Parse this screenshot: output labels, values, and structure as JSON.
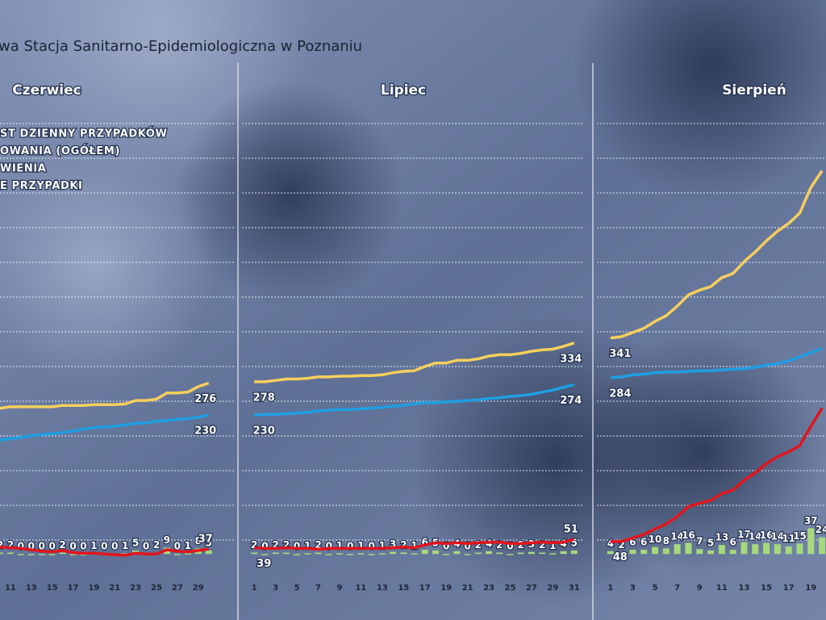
{
  "header": {
    "title": "wa Stacja Sanitarno-Epidemiologiczna w Poznaniu"
  },
  "chart_data": [
    {
      "type": "line",
      "title": "Czerwiec",
      "x": [
        10,
        11,
        12,
        13,
        14,
        15,
        16,
        17,
        18,
        19,
        20,
        21,
        22,
        23,
        24,
        25,
        26,
        27,
        28,
        29,
        30
      ],
      "xlim": [
        10,
        32.5
      ],
      "xticks": [
        11,
        13,
        15,
        17,
        19,
        21,
        23,
        25,
        27,
        29
      ],
      "ylim": [
        0,
        700
      ],
      "yticks": [
        50,
        100,
        150,
        200,
        250,
        300,
        350,
        400,
        450,
        500,
        550,
        600,
        650
      ],
      "y2lim": [
        -30,
        670
      ],
      "grid": true,
      "series": [
        {
          "name": "ST DZIENNY PRZYPADKÓW",
          "type": "bar",
          "axis": "y2",
          "color": "#a6d97c",
          "values": [
            2,
            2,
            0,
            0,
            0,
            0,
            2,
            0,
            0,
            1,
            0,
            0,
            1,
            5,
            0,
            2,
            9,
            0,
            1,
            8,
            5
          ]
        },
        {
          "name": "OWANIA (OGÓŁEM)",
          "type": "line",
          "color": "#f7cf5c",
          "values": [
            240,
            242,
            242,
            242,
            242,
            242,
            244,
            244,
            244,
            245,
            245,
            245,
            246,
            251,
            251,
            253,
            262,
            262,
            263,
            271,
            276
          ]
        },
        {
          "name": "WIENIA",
          "type": "line",
          "color": "#1e9fe3",
          "values": [
            194,
            196,
            198,
            200,
            202,
            203,
            205,
            207,
            210,
            212,
            213,
            214,
            216,
            218,
            219,
            221,
            222,
            224,
            225,
            227,
            230
          ]
        },
        {
          "name": "E PRZYPADKI",
          "type": "line",
          "color": "#e3141c",
          "values": [
            40,
            39,
            38,
            36,
            34,
            33,
            35,
            32,
            31,
            31,
            30,
            29,
            28,
            31,
            30,
            30,
            36,
            34,
            33,
            35,
            37
          ]
        }
      ]
    },
    {
      "type": "line",
      "title": "Lipiec",
      "x": [
        1,
        2,
        3,
        4,
        5,
        6,
        7,
        8,
        9,
        10,
        11,
        12,
        13,
        14,
        15,
        16,
        17,
        18,
        19,
        20,
        21,
        22,
        23,
        24,
        25,
        26,
        27,
        28,
        29,
        30,
        31
      ],
      "xlim": [
        0,
        32
      ],
      "xticks": [
        1,
        3,
        5,
        7,
        9,
        11,
        13,
        15,
        17,
        19,
        21,
        23,
        25,
        27,
        29,
        31
      ],
      "ylim": [
        0,
        700
      ],
      "yticks": [
        50,
        100,
        150,
        200,
        250,
        300,
        350,
        400,
        450,
        500,
        550,
        600,
        650
      ],
      "y2lim": [
        -30,
        670
      ],
      "grid": true,
      "series": [
        {
          "type": "bar",
          "axis": "y2",
          "color": "#a6d97c",
          "values": [
            2,
            0,
            2,
            2,
            0,
            1,
            2,
            0,
            1,
            0,
            1,
            0,
            1,
            3,
            2,
            1,
            6,
            5,
            0,
            4,
            0,
            2,
            4,
            2,
            0,
            2,
            3,
            2,
            1,
            4,
            5
          ]
        },
        {
          "type": "line",
          "color": "#f7cf5c",
          "values": [
            278,
            278,
            280,
            282,
            282,
            283,
            285,
            285,
            286,
            286,
            287,
            287,
            288,
            291,
            293,
            294,
            300,
            305,
            305,
            309,
            309,
            311,
            315,
            317,
            317,
            319,
            322,
            324,
            325,
            329,
            334
          ]
        },
        {
          "type": "line",
          "color": "#1e9fe3",
          "values": [
            230,
            231,
            231,
            232,
            233,
            234,
            236,
            237,
            238,
            238,
            239,
            240,
            241,
            243,
            244,
            246,
            248,
            248,
            249,
            250,
            251,
            252,
            254,
            255,
            257,
            258,
            260,
            263,
            266,
            270,
            274
          ]
        },
        {
          "type": "line",
          "color": "#e3141c",
          "values": [
            39,
            38,
            38,
            39,
            38,
            38,
            37,
            38,
            38,
            38,
            38,
            38,
            38,
            39,
            40,
            39,
            43,
            46,
            45,
            46,
            45,
            46,
            47,
            47,
            45,
            45,
            46,
            47,
            46,
            47,
            51
          ]
        }
      ]
    },
    {
      "type": "line",
      "title": "Sierpień",
      "x": [
        1,
        2,
        3,
        4,
        5,
        6,
        7,
        8,
        9,
        10,
        11,
        12,
        13,
        14,
        15,
        16,
        17,
        18,
        19,
        20
      ],
      "xlim": [
        0,
        20.5
      ],
      "xticks": [
        1,
        3,
        5,
        7,
        9,
        11,
        13,
        15,
        17,
        19
      ],
      "ylim": [
        0,
        700
      ],
      "yticks": [
        50,
        100,
        150,
        200,
        250,
        300,
        350,
        400,
        450,
        500,
        550,
        600,
        650
      ],
      "y2lim": [
        -30,
        670
      ],
      "grid": true,
      "series": [
        {
          "type": "bar",
          "axis": "y2",
          "color": "#a6d97c",
          "values": [
            4,
            2,
            6,
            6,
            10,
            8,
            14,
            16,
            7,
            5,
            13,
            6,
            17,
            14,
            16,
            14,
            11,
            15,
            37,
            24
          ]
        },
        {
          "type": "line",
          "color": "#f7cf5c",
          "values": [
            341,
            343,
            349,
            355,
            365,
            373,
            387,
            403,
            410,
            415,
            428,
            434,
            451,
            465,
            481,
            495,
            506,
            521,
            558,
            582
          ]
        },
        {
          "type": "line",
          "color": "#1e9fe3",
          "values": [
            284,
            285,
            288,
            289,
            291,
            292,
            292,
            293,
            294,
            294,
            295,
            296,
            297,
            299,
            302,
            304,
            308,
            314,
            320,
            326
          ]
        },
        {
          "type": "line",
          "color": "#e3141c",
          "values": [
            48,
            48,
            53,
            58,
            66,
            73,
            84,
            98,
            103,
            107,
            117,
            122,
            136,
            147,
            160,
            170,
            177,
            186,
            214,
            240
          ]
        }
      ]
    }
  ]
}
